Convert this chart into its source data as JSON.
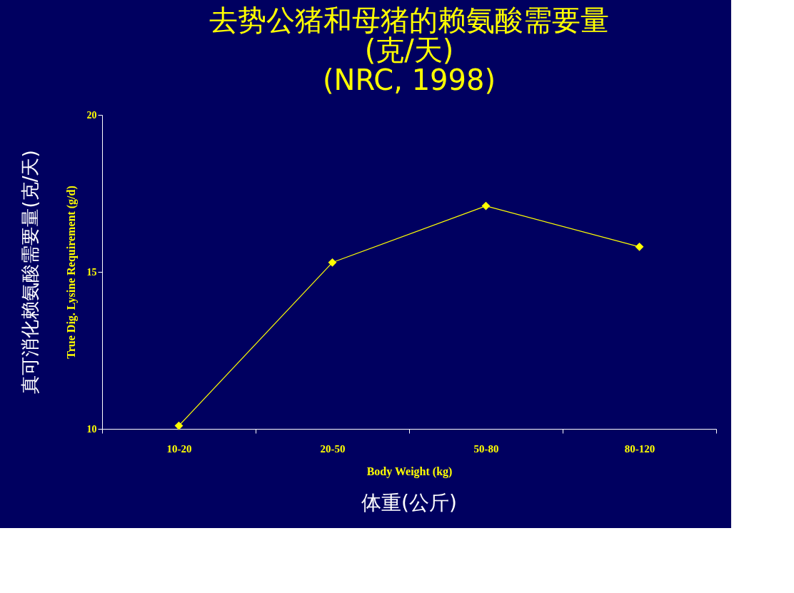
{
  "chart_data": {
    "type": "line",
    "title": "去势公猪和母猪的赖氨酸需要量\n(克/天)\n(NRC, 1998)",
    "xlabel": "Body Weight (kg)",
    "ylabel": "True Dig. Lysine Requirement (g/d)",
    "annotations": [
      "真可消化赖氨酸需要量(克/天)",
      "体重(公斤)"
    ],
    "categories": [
      "10-20",
      "20-50",
      "50-80",
      "80-120"
    ],
    "series": [
      {
        "color": "#ffff00",
        "values": [
          10.1,
          15.3,
          17.1,
          15.8
        ]
      }
    ],
    "ylim": [
      10,
      20
    ],
    "yticks": [
      10,
      15,
      20
    ],
    "marker": "diamond",
    "grid": false
  }
}
